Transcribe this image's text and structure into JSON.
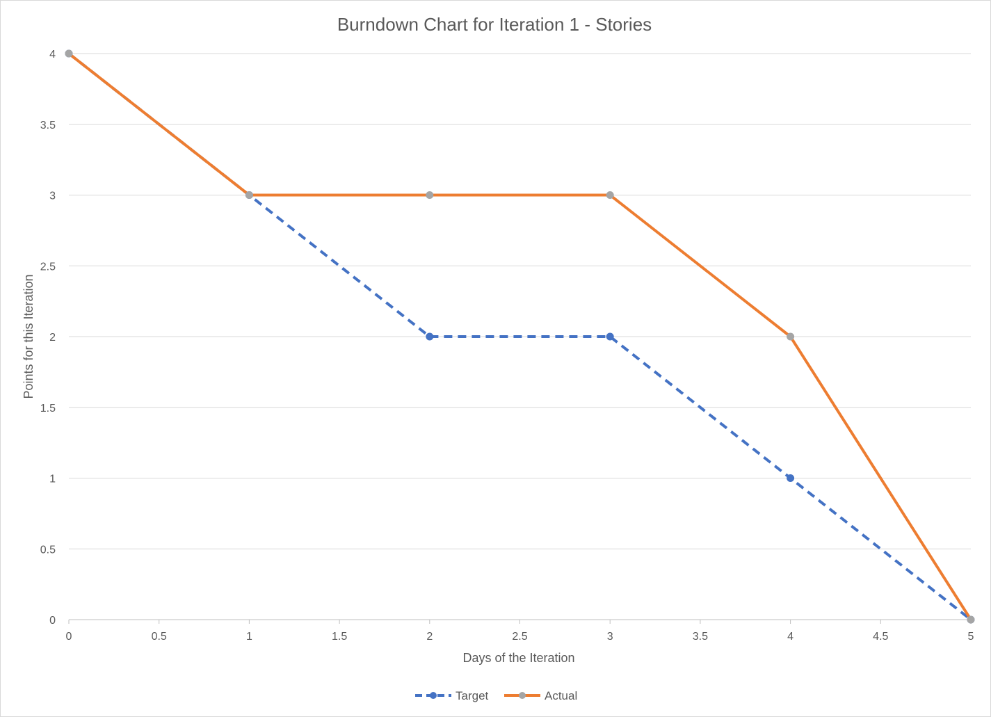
{
  "chart_data": {
    "type": "line",
    "title": "Burndown Chart for Iteration 1 - Stories",
    "xlabel": "Days of the Iteration",
    "ylabel": "Points for this Iteration",
    "xlim": [
      0,
      5
    ],
    "ylim": [
      0,
      4
    ],
    "x_ticks": [
      "0",
      "0.5",
      "1",
      "1.5",
      "2",
      "2.5",
      "3",
      "3.5",
      "4",
      "4.5",
      "5"
    ],
    "y_ticks": [
      "0",
      "0.5",
      "1",
      "1.5",
      "2",
      "2.5",
      "3",
      "3.5",
      "4"
    ],
    "grid": true,
    "legend_position": "bottom",
    "series": [
      {
        "name": "Target",
        "x": [
          0,
          1,
          2,
          3,
          4,
          5
        ],
        "values": [
          4,
          3,
          2,
          2,
          1,
          0
        ],
        "color": "#4472c4",
        "line_style": "dashed",
        "marker_color": "#4472c4"
      },
      {
        "name": "Actual",
        "x": [
          0,
          1,
          2,
          3,
          4,
          5
        ],
        "values": [
          4,
          3,
          3,
          3,
          2,
          0
        ],
        "color": "#ed7d31",
        "line_style": "solid",
        "marker_color": "#a5a5a5"
      }
    ]
  }
}
